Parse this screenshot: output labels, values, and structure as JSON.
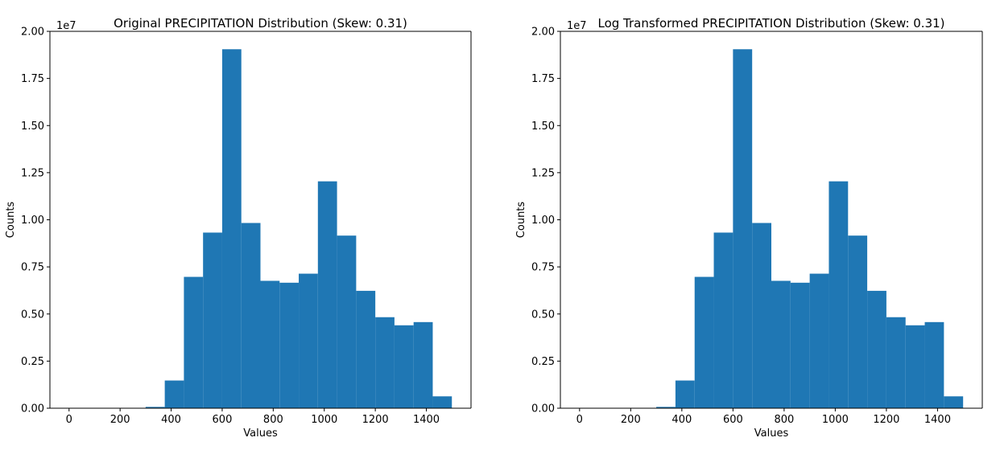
{
  "chart_data": [
    {
      "type": "bar",
      "title": "Original PRECIPITATION Distribution (Skew: 0.31)",
      "xlabel": "Values",
      "ylabel": "Counts",
      "y_offset_label": "1e7",
      "xlim": [
        -75,
        1575
      ],
      "ylim": [
        0,
        2.0
      ],
      "xticks": [
        0,
        200,
        400,
        600,
        800,
        1000,
        1200,
        1400
      ],
      "yticks": [
        "0.00",
        "0.25",
        "0.50",
        "0.75",
        "1.00",
        "1.25",
        "1.50",
        "1.75",
        "2.00"
      ],
      "bin_edges": [
        0,
        75,
        150,
        225,
        300,
        375,
        450,
        525,
        600,
        675,
        750,
        825,
        900,
        975,
        1050,
        1125,
        1200,
        1275,
        1350,
        1425,
        1500
      ],
      "values": [
        0,
        0,
        0,
        0.005,
        0.07,
        1.47,
        6.97,
        9.32,
        19.05,
        9.83,
        6.76,
        6.66,
        7.14,
        12.04,
        9.16,
        6.23,
        4.83,
        4.4,
        4.57,
        0.63
      ],
      "value_unit_note": "values are scaled by 1e7 offset as shown on y axis",
      "bar_color": "#1f77b4",
      "grid": false
    },
    {
      "type": "bar",
      "title": "Log Transformed PRECIPITATION Distribution (Skew: 0.31)",
      "xlabel": "Values",
      "ylabel": "Counts",
      "y_offset_label": "1e7",
      "xlim": [
        -75,
        1575
      ],
      "ylim": [
        0,
        2.0
      ],
      "xticks": [
        0,
        200,
        400,
        600,
        800,
        1000,
        1200,
        1400
      ],
      "yticks": [
        "0.00",
        "0.25",
        "0.50",
        "0.75",
        "1.00",
        "1.25",
        "1.50",
        "1.75",
        "2.00"
      ],
      "bin_edges": [
        0,
        75,
        150,
        225,
        300,
        375,
        450,
        525,
        600,
        675,
        750,
        825,
        900,
        975,
        1050,
        1125,
        1200,
        1275,
        1350,
        1425,
        1500
      ],
      "values": [
        0,
        0,
        0,
        0.005,
        0.07,
        1.47,
        6.97,
        9.32,
        19.05,
        9.83,
        6.76,
        6.66,
        7.14,
        12.04,
        9.16,
        6.23,
        4.83,
        4.4,
        4.57,
        0.63
      ],
      "value_unit_note": "values are scaled by 1e7 offset as shown on y axis",
      "bar_color": "#1f77b4",
      "grid": false
    }
  ]
}
